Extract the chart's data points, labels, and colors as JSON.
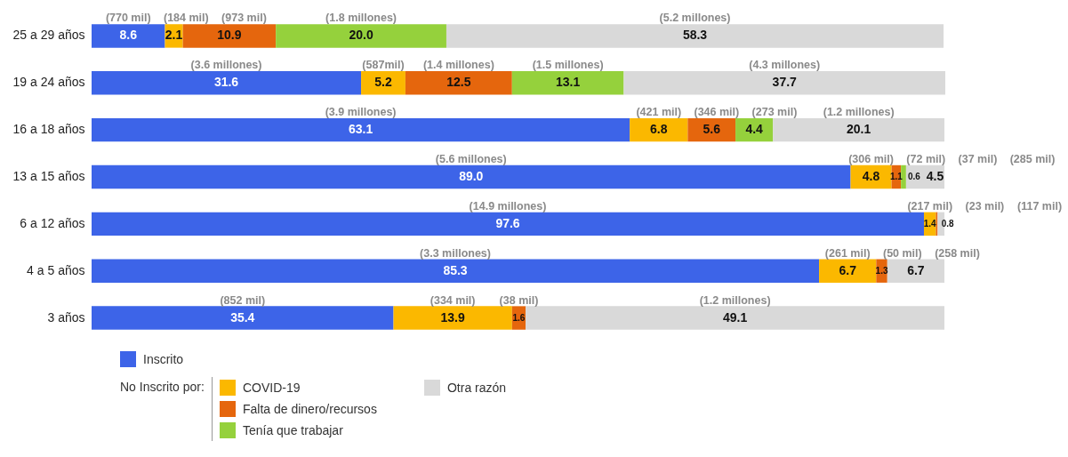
{
  "chart_data": {
    "type": "bar",
    "orientation": "horizontal",
    "stacked": true,
    "legend": "bottom left",
    "legend_title": "No Inscrito por:",
    "tick_labels": "y",
    "categories": [
      "25 a 29 años",
      "19 a 24 años",
      "16 a 18 años",
      "13 a 15 años",
      "6 a 12 años",
      "4 a 5 años",
      "3 años"
    ],
    "series": [
      {
        "name": "Inscrito",
        "color": "#3d64e8",
        "values": [
          8.6,
          31.6,
          63.1,
          89.0,
          97.6,
          85.3,
          35.4
        ],
        "value_labels": [
          "8.6",
          "31.6",
          "63.1",
          "89.0",
          "97.6",
          "85.3",
          "35.4"
        ]
      },
      {
        "name": "COVID-19",
        "color": "#fbb800",
        "values": [
          2.1,
          5.2,
          6.8,
          4.8,
          1.4,
          6.7,
          13.9
        ],
        "value_labels": [
          "2.1",
          "5.2",
          "6.8",
          "4.8",
          "1.4",
          "6.7",
          "13.9"
        ]
      },
      {
        "name": "Falta de dinero/recursos",
        "color": "#e5660d",
        "values": [
          10.9,
          12.5,
          5.6,
          1.1,
          0.2,
          1.3,
          1.6
        ],
        "value_labels": [
          "10.9",
          "12.5",
          "5.6",
          "1.1",
          null,
          "1.3",
          "1.6"
        ]
      },
      {
        "name": "Tenía que trabajar",
        "color": "#95d13c",
        "values": [
          20.0,
          13.1,
          4.4,
          0.6,
          null,
          null,
          null
        ],
        "value_labels": [
          "20.0",
          "13.1",
          "4.4",
          "0.6",
          null,
          null,
          null
        ]
      },
      {
        "name": "Otra razón",
        "color": "#d9d9d9",
        "values": [
          58.3,
          37.7,
          20.1,
          4.5,
          0.8,
          6.7,
          49.1
        ],
        "value_labels": [
          "58.3",
          "37.7",
          "20.1",
          "4.5",
          "0.8",
          "6.7",
          "49.1"
        ]
      }
    ],
    "annotations": [
      "(770 mil)",
      "(184 mil)",
      "(973 mil)",
      "(1.8 millones)",
      "(5.2 millones)",
      "(3.6 millones)",
      "(587mil)",
      "(1.4 millones)",
      "(1.5 millones)",
      "(4.3 millones)",
      "(3.9 millones)",
      "(421 mil)",
      "(346 mil)",
      "(273 mil)",
      "(1.2 millones)",
      "(5.6 millones)",
      "(306 mil)",
      "(72 mil)",
      "(37 mil)",
      "(285 mil)",
      "(14.9 millones)",
      "(217 mil)",
      "(23 mil)",
      "(117 mil)",
      "(3.3 millones)",
      "(261 mil)",
      "(50 mil)",
      "(258 mil)",
      "(852 mil)",
      "(334 mil)",
      "(38 mil)",
      "(1.2 millones)"
    ]
  }
}
